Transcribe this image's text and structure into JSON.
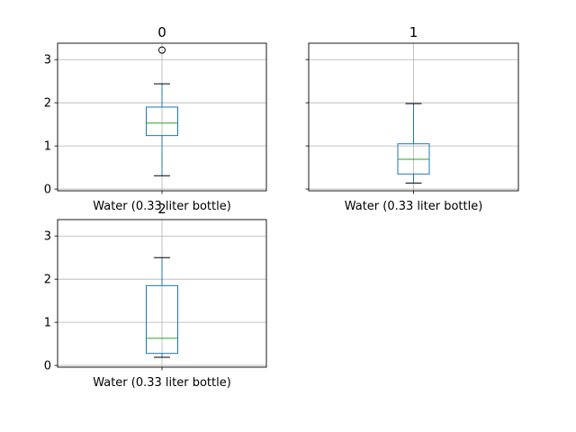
{
  "chart_data": [
    {
      "type": "box",
      "title": "0",
      "category": "Water (0.33 liter bottle)",
      "ylim": [
        -0.04,
        3.38
      ],
      "yticks": [
        0,
        1,
        2,
        3
      ],
      "grid": true,
      "box": {
        "whisker_low": 0.31,
        "q1": 1.24,
        "median": 1.53,
        "q3": 1.9,
        "whisker_high": 2.44,
        "fliers": [
          3.22
        ]
      },
      "colors": {
        "box": "#1f77b4",
        "median": "#2ca02c"
      }
    },
    {
      "type": "box",
      "title": "1",
      "category": "Water (0.33 liter bottle)",
      "ylim": [
        -0.04,
        3.38
      ],
      "yticks": [
        0,
        1,
        2,
        3
      ],
      "ytick_labels_visible": false,
      "grid": true,
      "box": {
        "whisker_low": 0.14,
        "q1": 0.35,
        "median": 0.69,
        "q3": 1.05,
        "whisker_high": 1.98,
        "fliers": []
      },
      "colors": {
        "box": "#1f77b4",
        "median": "#2ca02c"
      }
    },
    {
      "type": "box",
      "title": "2",
      "category": "Water (0.33 liter bottle)",
      "ylim": [
        -0.04,
        3.38
      ],
      "yticks": [
        0,
        1,
        2,
        3
      ],
      "grid": true,
      "box": {
        "whisker_low": 0.19,
        "q1": 0.28,
        "median": 0.63,
        "q3": 1.85,
        "whisker_high": 2.5,
        "fliers": []
      },
      "colors": {
        "box": "#1f77b4",
        "median": "#2ca02c"
      }
    }
  ]
}
